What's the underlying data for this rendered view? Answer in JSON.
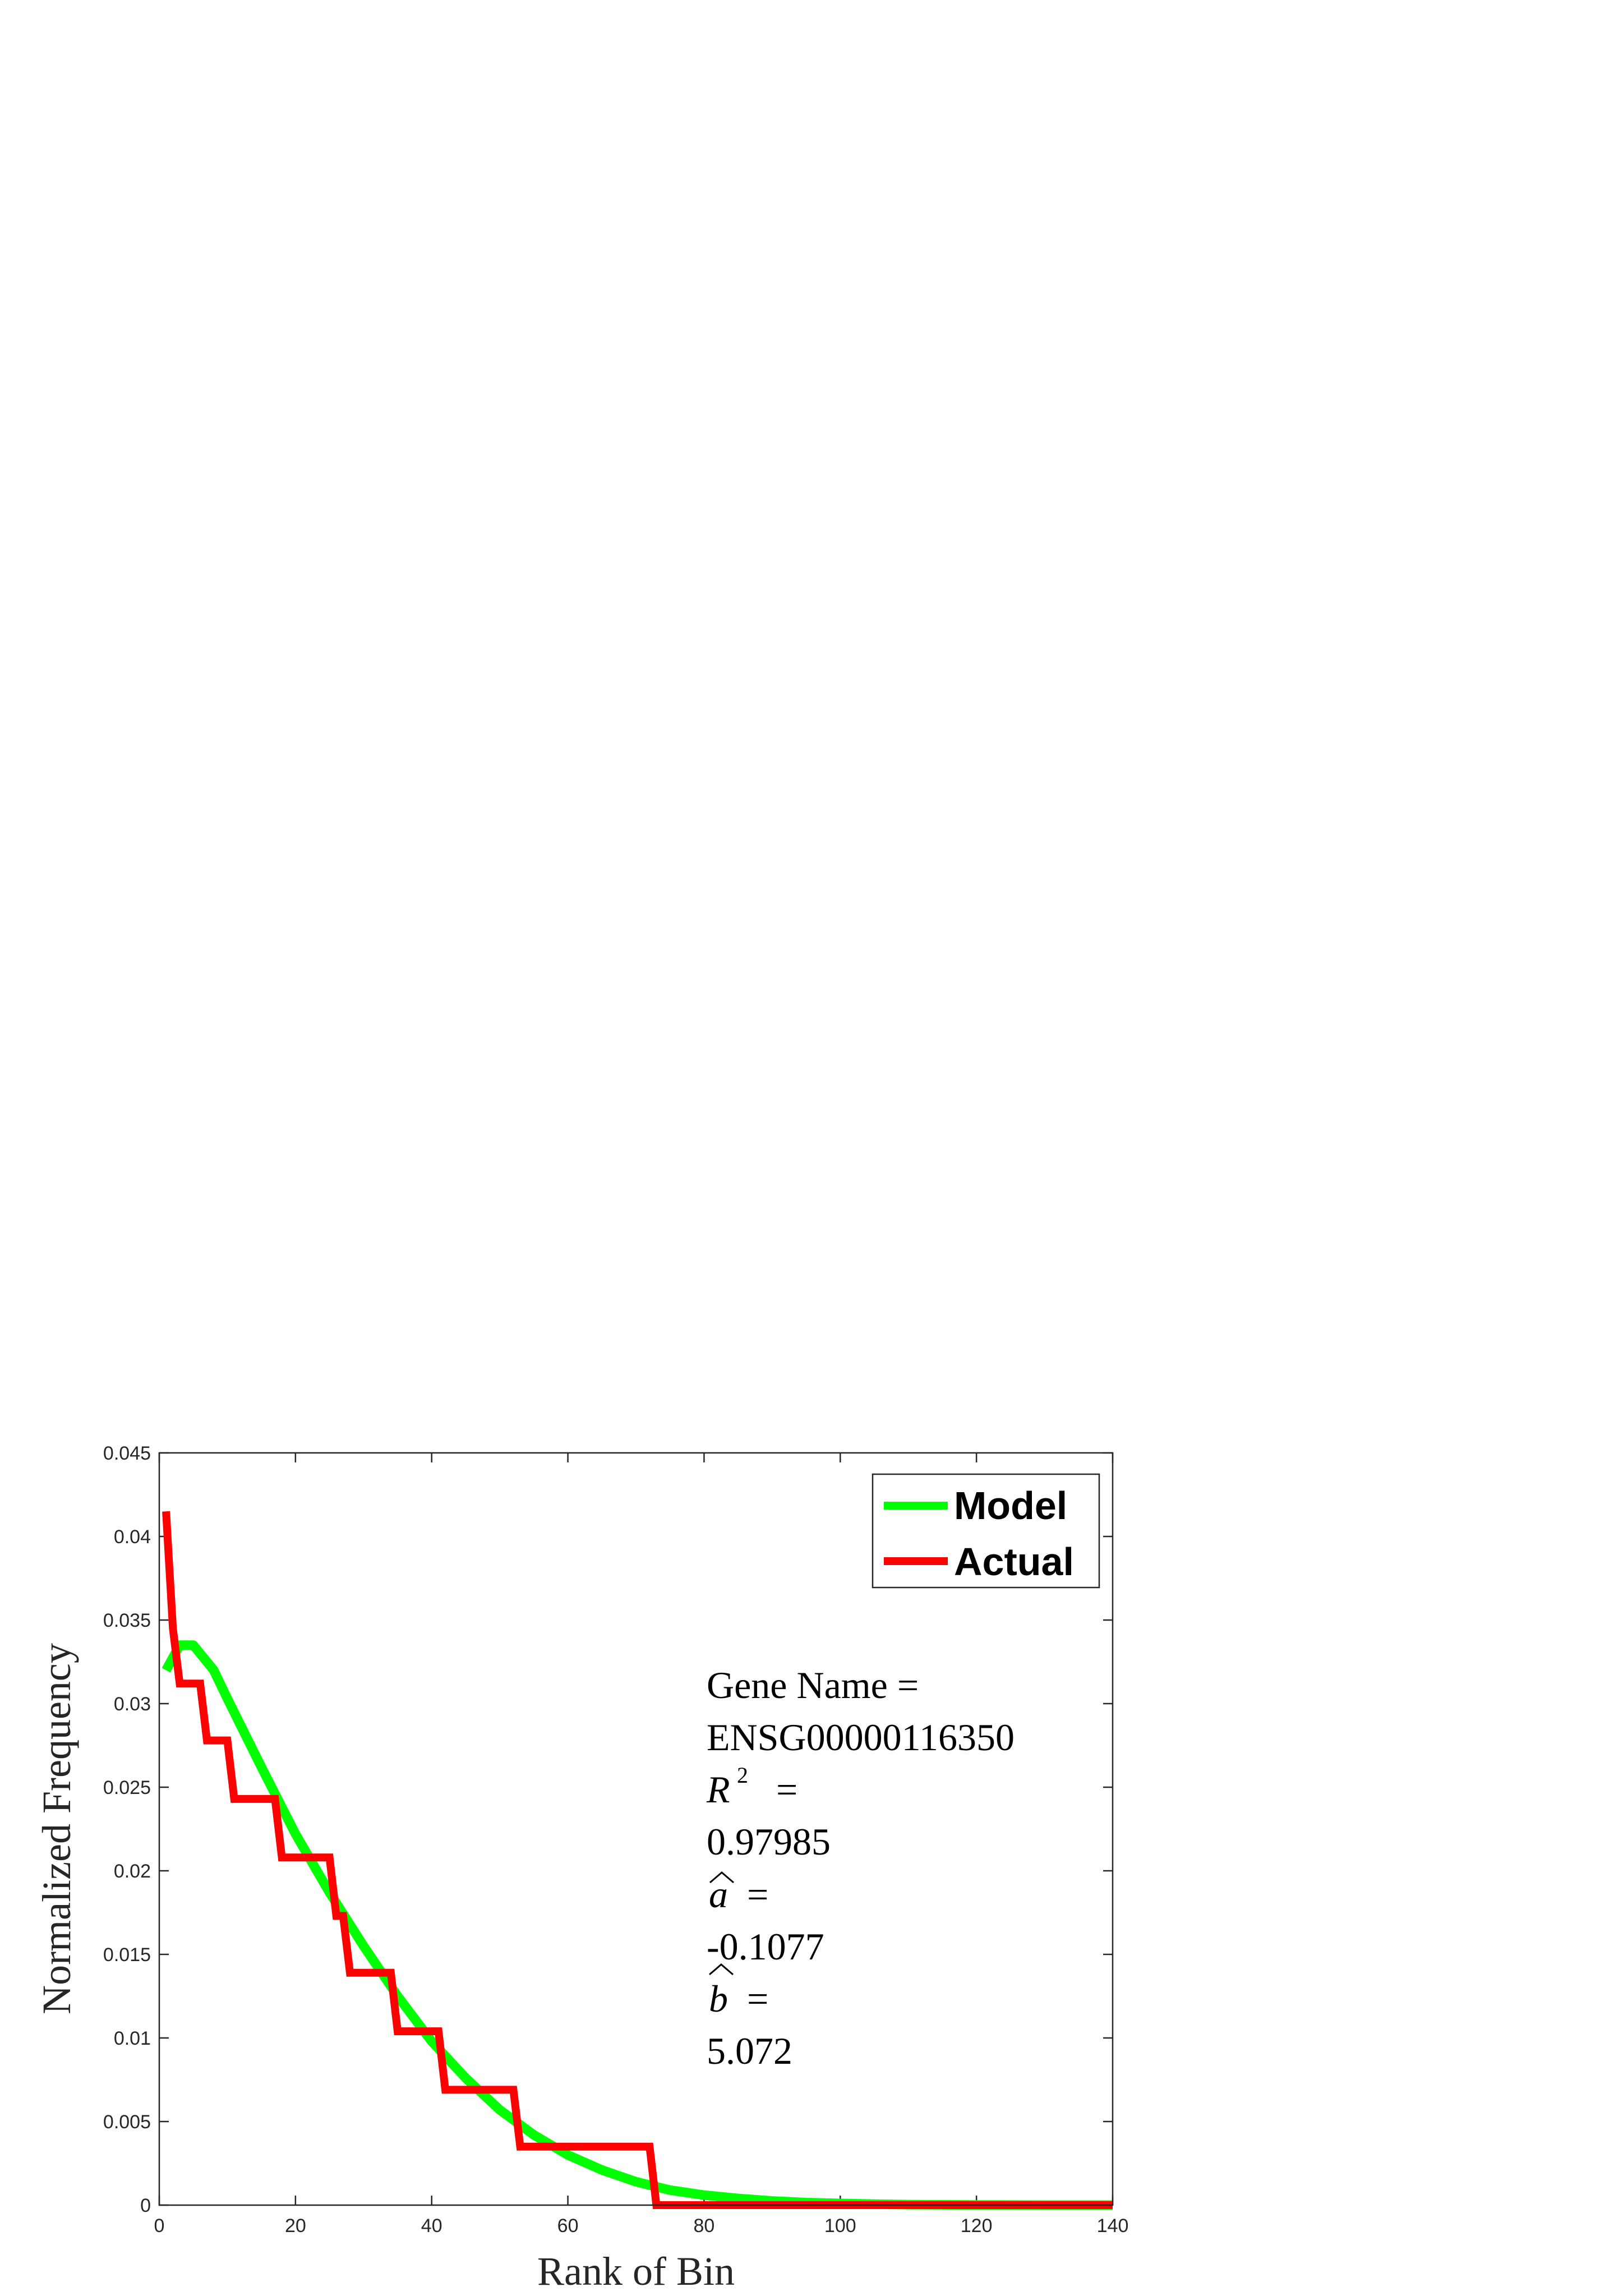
{
  "chart_data": {
    "type": "line",
    "xlabel": "Rank of Bin",
    "ylabel": "Normalized Frequency",
    "xlim": [
      0,
      140
    ],
    "ylim": [
      0,
      0.045
    ],
    "xticks": [
      "0",
      "20",
      "40",
      "60",
      "80",
      "100",
      "120",
      "140"
    ],
    "yticks": [
      "0",
      "0.005",
      "0.01",
      "0.015",
      "0.02",
      "0.025",
      "0.03",
      "0.035",
      "0.04",
      "0.045"
    ],
    "grid": false,
    "legend": {
      "placement": "top-right",
      "entries": [
        "Model",
        "Actual"
      ]
    },
    "colors": {
      "Model": "#00ff00",
      "Actual": "#ff0000"
    },
    "series": [
      {
        "name": "Model",
        "x": [
          1,
          3,
          5,
          8,
          10,
          15,
          20,
          25,
          30,
          35,
          40,
          45,
          50,
          55,
          60,
          65,
          70,
          75,
          80,
          85,
          90,
          95,
          100,
          105,
          110,
          115,
          120,
          130,
          140
        ],
        "y": [
          0.032,
          0.0335,
          0.0335,
          0.032,
          0.0303,
          0.0262,
          0.0222,
          0.0187,
          0.0155,
          0.0125,
          0.0098,
          0.0076,
          0.0057,
          0.0042,
          0.003,
          0.0021,
          0.0014,
          0.0009,
          0.0006,
          0.0004,
          0.00025,
          0.00015,
          0.0001,
          6e-05,
          3e-05,
          2e-05,
          1e-05,
          0,
          0
        ]
      },
      {
        "name": "Actual",
        "x": [
          1,
          2,
          3,
          6,
          7,
          10,
          11,
          17,
          18,
          25,
          26,
          27,
          28,
          34,
          35,
          41,
          42,
          52,
          53,
          72,
          73,
          140
        ],
        "y": [
          0.0415,
          0.0345,
          0.0312,
          0.0312,
          0.0278,
          0.0278,
          0.0243,
          0.0243,
          0.0208,
          0.0208,
          0.0173,
          0.0173,
          0.0139,
          0.0139,
          0.0104,
          0.0104,
          0.0069,
          0.0069,
          0.0035,
          0.0035,
          0,
          0
        ]
      }
    ],
    "annotation": {
      "gene_label": "Gene Name =",
      "gene_value": "ENSG00000116350",
      "r2_label": "R",
      "r2_sup": "2",
      "r2_eq": "=",
      "r2_value": "0.97985",
      "a_label": "a",
      "a_eq": "=",
      "a_value": "-0.1077",
      "b_label": "b",
      "b_eq": "=",
      "b_value": "5.072"
    }
  }
}
